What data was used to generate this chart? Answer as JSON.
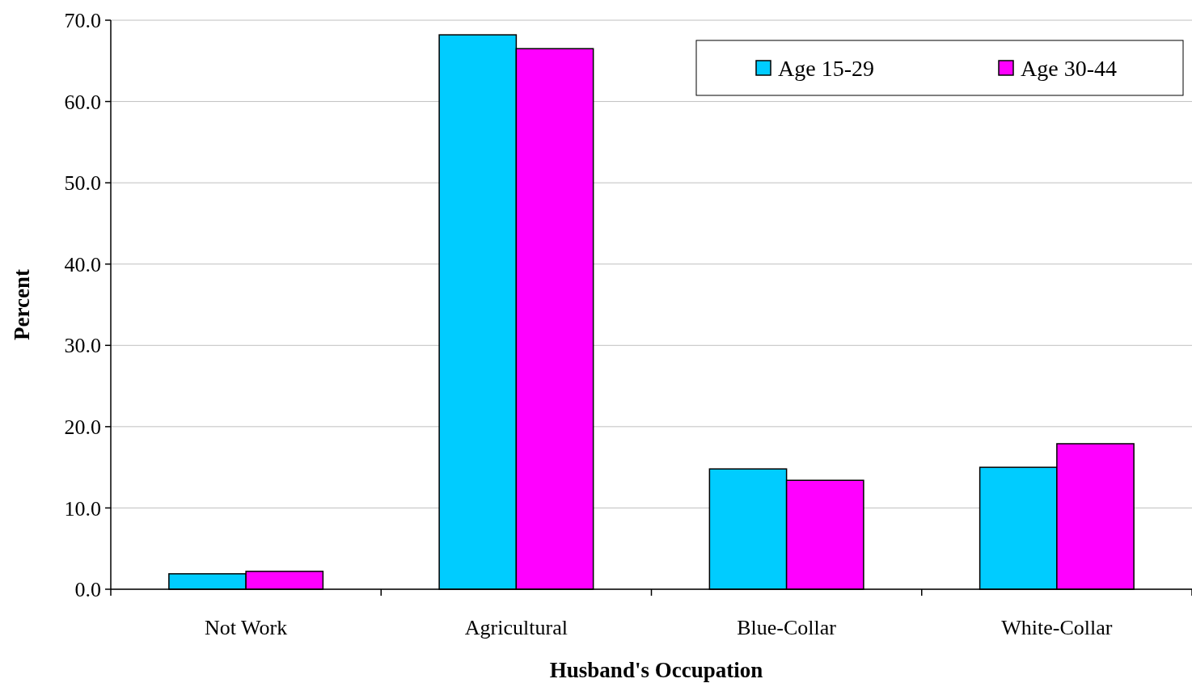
{
  "chart_data": {
    "type": "bar",
    "xlabel": "Husband's Occupation",
    "ylabel": "Percent",
    "categories": [
      "Not Work",
      "Agricultural",
      "Blue-Collar",
      "White-Collar"
    ],
    "series": [
      {
        "name": "Age 15-29",
        "color": "#00ccff",
        "values": [
          1.9,
          68.2,
          14.8,
          15.0
        ]
      },
      {
        "name": "Age 30-44",
        "color": "#ff00ff",
        "values": [
          2.2,
          66.5,
          13.4,
          17.9
        ]
      }
    ],
    "ylim": [
      0,
      70
    ],
    "yticks": [
      {
        "value": 0,
        "label": "0.0"
      },
      {
        "value": 10,
        "label": "10.0"
      },
      {
        "value": 20,
        "label": "20.0"
      },
      {
        "value": 30,
        "label": "30.0"
      },
      {
        "value": 40,
        "label": "40.0"
      },
      {
        "value": 50,
        "label": "50.0"
      },
      {
        "value": 60,
        "label": "60.0"
      },
      {
        "value": 70,
        "label": "70.0"
      }
    ],
    "grid": "y",
    "legend": "top right"
  }
}
